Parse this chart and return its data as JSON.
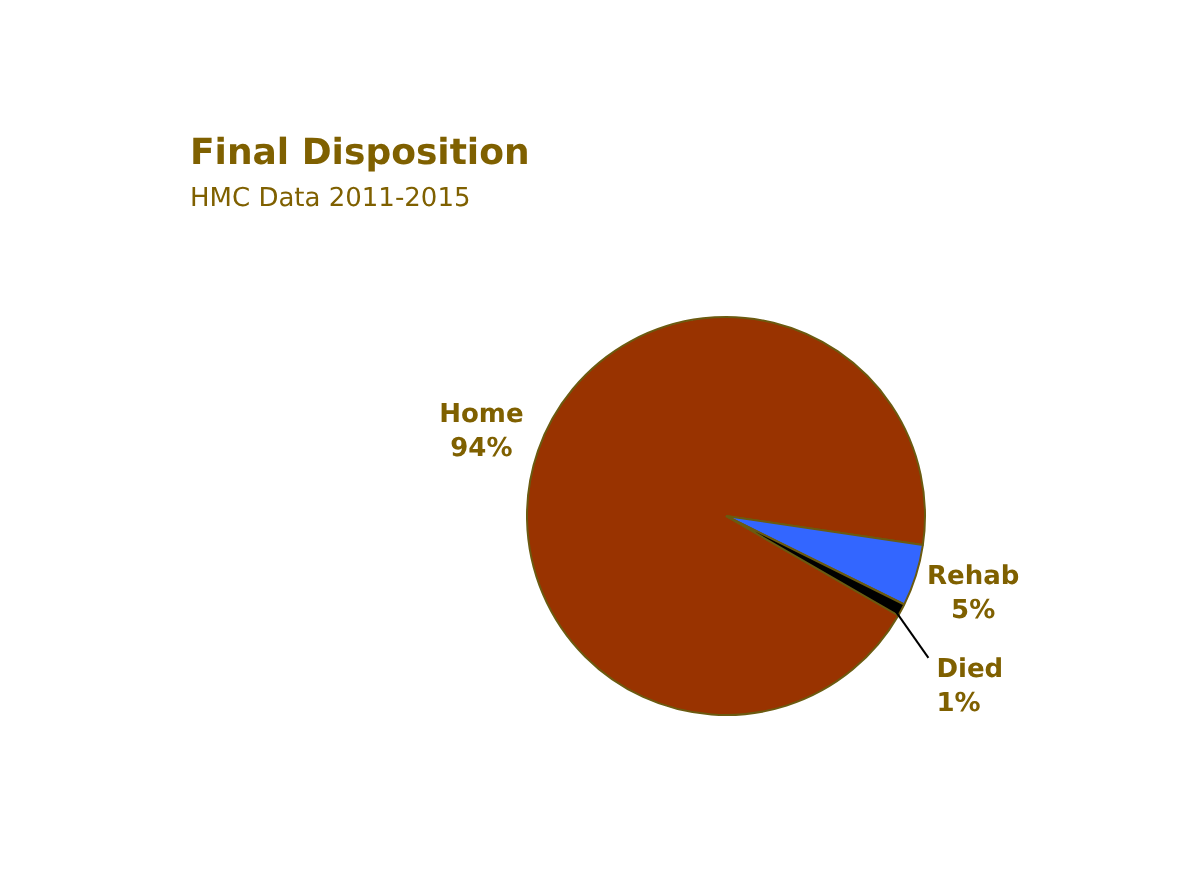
{
  "chart_data": {
    "type": "pie",
    "title": "Final Disposition",
    "subtitle": "HMC Data 2011-2015",
    "categories": [
      "Home",
      "Rehab",
      "Died"
    ],
    "values": [
      94,
      5,
      1
    ],
    "value_labels": [
      "94%",
      "5%",
      "1%"
    ],
    "colors": [
      "#993300",
      "#3366ff",
      "#000000"
    ],
    "legend": false
  }
}
